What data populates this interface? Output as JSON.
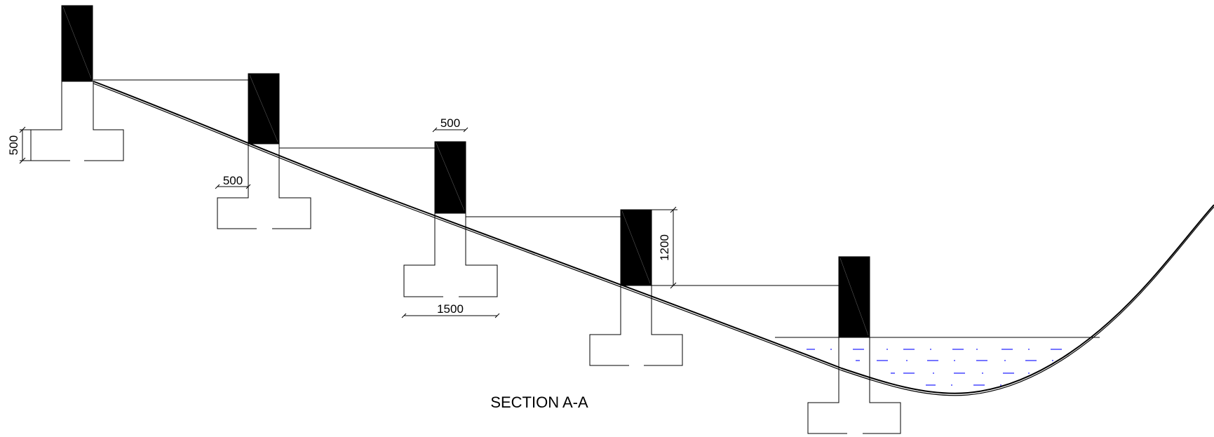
{
  "drawing": {
    "title": "SECTION A-A",
    "dimensions": {
      "footing_height": "500",
      "wall_offset": "500",
      "wall_thickness": "500",
      "footing_width": "1500",
      "step_height": "1200"
    },
    "colors": {
      "line": "#000000",
      "wall_fill": "#000000",
      "water_hatch": "#1a1aff"
    }
  }
}
